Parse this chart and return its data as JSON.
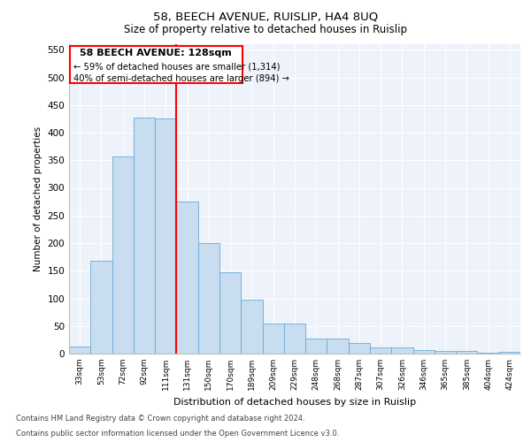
{
  "title1": "58, BEECH AVENUE, RUISLIP, HA4 8UQ",
  "title2": "Size of property relative to detached houses in Ruislip",
  "xlabel": "Distribution of detached houses by size in Ruislip",
  "ylabel": "Number of detached properties",
  "categories": [
    "33sqm",
    "53sqm",
    "72sqm",
    "92sqm",
    "111sqm",
    "131sqm",
    "150sqm",
    "170sqm",
    "189sqm",
    "209sqm",
    "229sqm",
    "248sqm",
    "268sqm",
    "287sqm",
    "307sqm",
    "326sqm",
    "346sqm",
    "365sqm",
    "385sqm",
    "404sqm",
    "424sqm"
  ],
  "values": [
    13,
    168,
    357,
    427,
    425,
    275,
    200,
    148,
    97,
    55,
    55,
    27,
    27,
    20,
    11,
    11,
    7,
    5,
    5,
    2,
    3
  ],
  "bar_color": "#c9ddf0",
  "bar_edge_color": "#6aaad4",
  "property_label": "58 BEECH AVENUE: 128sqm",
  "annotation_line1": "← 59% of detached houses are smaller (1,314)",
  "annotation_line2": "40% of semi-detached houses are larger (894) →",
  "box_edge_color": "red",
  "vline_color": "red",
  "ylim": [
    0,
    560
  ],
  "yticks": [
    0,
    50,
    100,
    150,
    200,
    250,
    300,
    350,
    400,
    450,
    500,
    550
  ],
  "footer1": "Contains HM Land Registry data © Crown copyright and database right 2024.",
  "footer2": "Contains public sector information licensed under the Open Government Licence v3.0.",
  "bg_color": "#eef2fa",
  "grid_color": "white"
}
